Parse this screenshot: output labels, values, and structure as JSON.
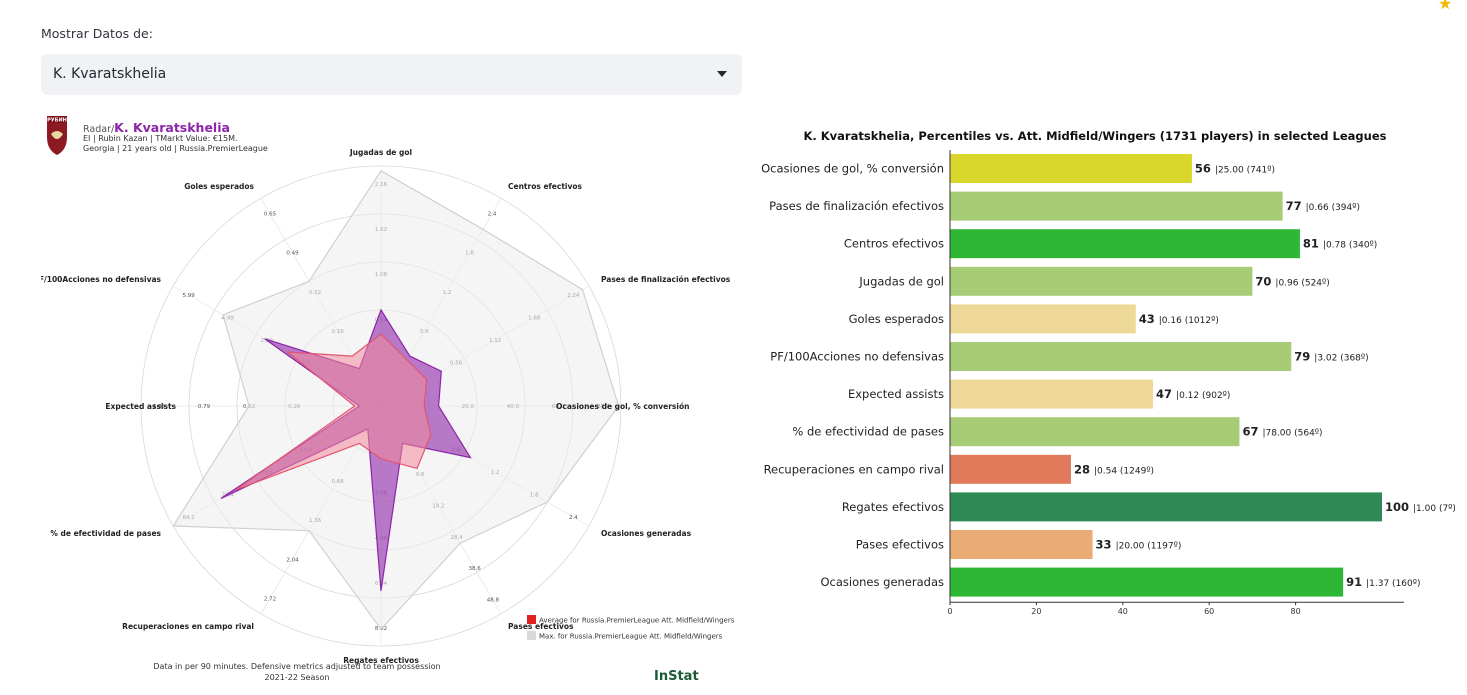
{
  "app": {
    "select_label": "Mostrar Datos de:",
    "selected_player": "K. Kvaratskhelia",
    "star_icon": "star-icon"
  },
  "radar": {
    "logo_text": "РУБИН",
    "prefix": "Radar/",
    "player": "K. Kvaratskhelia",
    "line1": "EI | Rubin Kazan | TMarkt Value: €15M.",
    "line2": "Georgia | 21 years old | Russia.PremierLeague",
    "footer1": "Data in per 90 minutes. Defensive metrics adjusted to team possession",
    "footer2": "2021-22 Season",
    "brand": "InStat",
    "legend": [
      {
        "label": "Average for Russia.PremierLeague Att. Midfield/Wingers",
        "color": "#e02020"
      },
      {
        "label": "Max. for Russia.PremierLeague Att. Midfield/Wingers",
        "color": "#d9d9d9"
      }
    ],
    "colors": {
      "player": "#8e24aa",
      "average": "#f28b9b",
      "max": "#ededed"
    },
    "axes": [
      {
        "label": "Jugadas de gol",
        "ticks": [
          "0.54",
          "1.08",
          "1.62",
          "2.16"
        ],
        "player": 0.4,
        "average": 0.3,
        "max": 0.98
      },
      {
        "label": "Centros efectivos",
        "ticks": [
          "0.6",
          "1.2",
          "1.8",
          "2.4"
        ],
        "player": 0.24,
        "average": 0.22,
        "max": 0.85
      },
      {
        "label": "Pases de finalización efectivos",
        "ticks": [
          "0.56",
          "1.12",
          "1.68",
          "2.24"
        ],
        "player": 0.29,
        "average": 0.22,
        "max": 0.97
      },
      {
        "label": "Ocasiones de gol, % conversión",
        "ticks": [
          "20.0",
          "40.0",
          "60.0",
          "80.0"
        ],
        "player": 0.24,
        "average": 0.18,
        "max": 0.99
      },
      {
        "label": "Ocasiones generadas",
        "ticks": [
          "0.6",
          "1.2",
          "1.8",
          "2.4"
        ],
        "player": 0.43,
        "average": 0.24,
        "max": 0.8
      },
      {
        "label": "Pases efectivos",
        "ticks": [
          "9.6",
          "19.2",
          "28.4",
          "38.6",
          "48.8"
        ],
        "player": 0.18,
        "average": 0.3,
        "max": 0.66
      },
      {
        "label": "Regates efectivos",
        "ticks": [
          "2.08",
          "4.06",
          "6.04",
          "8.02"
        ],
        "player": 0.77,
        "average": 0.22,
        "max": 0.93
      },
      {
        "label": "Recuperaciones en campo rival",
        "ticks": [
          "0.68",
          "1.36",
          "2.04",
          "2.72"
        ],
        "player": 0.11,
        "average": 0.18,
        "max": 0.6
      },
      {
        "label": "% de efectividad de pases",
        "ticks": [
          "60.8",
          "68.6",
          "76.4",
          "84.2"
        ],
        "player": 0.77,
        "average": 0.7,
        "max": 1.0
      },
      {
        "label": "Expected assists",
        "ticks": [
          "0.26",
          "0.52",
          "0.79",
          "1.05"
        ],
        "player": 0.09,
        "average": 0.11,
        "max": 0.55
      },
      {
        "label": "PF/100Acciones no defensivas",
        "ticks": [
          "1.5",
          "2.99",
          "4.49",
          "5.99"
        ],
        "player": 0.56,
        "average": 0.45,
        "max": 0.76
      },
      {
        "label": "Goles esperados",
        "ticks": [
          "0.16",
          "0.32",
          "0.49",
          "0.65"
        ],
        "player": 0.18,
        "average": 0.24,
        "max": 0.6
      }
    ]
  },
  "chart_data": {
    "type": "bar",
    "title": "K. Kvaratskhelia, Percentiles vs. Att. Midfield/Wingers (1731 players) in selected Leagues",
    "xlim": [
      0,
      100
    ],
    "xticks": [
      0,
      20,
      40,
      60,
      80
    ],
    "categories": [
      "Ocasiones de gol, % conversión",
      "Pases de finalización efectivos",
      "Centros efectivos",
      "Jugadas de gol",
      "Goles esperados",
      "PF/100Acciones no defensivas",
      "Expected assists",
      "% de efectividad de pases",
      "Recuperaciones en campo rival",
      "Regates efectivos",
      "Pases efectivos",
      "Ocasiones generadas"
    ],
    "values": [
      56,
      77,
      81,
      70,
      43,
      79,
      47,
      67,
      28,
      100,
      33,
      91
    ],
    "annotations": [
      "25.00 (741º)",
      "0.66 (394º)",
      "0.78 (340º)",
      "0.96 (524º)",
      "0.16 (1012º)",
      "3.02 (368º)",
      "0.12 (902º)",
      "78.00 (564º)",
      "0.54 (1249º)",
      "1.00 (7º)",
      "20.00 (1197º)",
      "1.37 (160º)"
    ],
    "colors": [
      "#d9d62c",
      "#a6cd76",
      "#2db735",
      "#a6cd76",
      "#eed898",
      "#a6cd76",
      "#eed898",
      "#a6cd76",
      "#e07a5a",
      "#2e8a55",
      "#eaac74",
      "#2db735"
    ],
    "grid": false
  }
}
